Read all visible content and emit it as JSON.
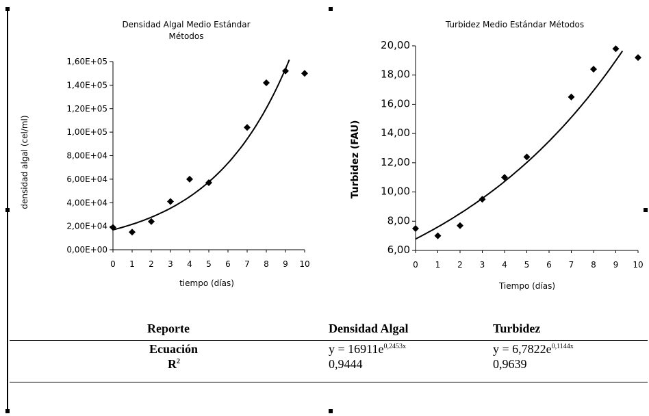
{
  "chart_data": [
    {
      "type": "scatter",
      "title": "Densidad Algal Medio Estándar Métodos",
      "title_lines": [
        "Densidad Algal Medio Estándar",
        "Métodos"
      ],
      "xlabel": "tiempo (días)",
      "ylabel": "densidad algal (cel/ml)",
      "xlim": [
        0,
        10
      ],
      "ylim": [
        0,
        160000
      ],
      "x_ticks": [
        0,
        1,
        2,
        3,
        4,
        5,
        6,
        7,
        8,
        9,
        10
      ],
      "y_ticks": [
        0,
        20000,
        40000,
        60000,
        80000,
        100000,
        120000,
        140000,
        160000
      ],
      "y_tick_labels": [
        "0,00E+00",
        "2,00E+04",
        "4,00E+04",
        "6,00E+04",
        "8,00E+04",
        "1,00E+05",
        "1,20E+05",
        "1,40E+05",
        "1,60E+05"
      ],
      "points": [
        {
          "x": 0,
          "y": 19000
        },
        {
          "x": 1,
          "y": 15000
        },
        {
          "x": 2,
          "y": 24000
        },
        {
          "x": 3,
          "y": 41000
        },
        {
          "x": 4,
          "y": 60000
        },
        {
          "x": 5,
          "y": 57000
        },
        {
          "x": 7,
          "y": 104000
        },
        {
          "x": 8,
          "y": 142000
        },
        {
          "x": 9,
          "y": 152000
        },
        {
          "x": 10,
          "y": 150000
        }
      ],
      "trendline": {
        "type": "exponential",
        "a": 16911,
        "b": 0.2453,
        "x_range": [
          0,
          9.2
        ]
      },
      "grid": false,
      "legend": "none"
    },
    {
      "type": "scatter",
      "title": "Turbidez Medio Estándar Métodos",
      "xlabel": "Tiempo (días)",
      "ylabel": "Turbidez (FAU)",
      "xlim": [
        0,
        10
      ],
      "ylim": [
        6,
        20
      ],
      "x_ticks": [
        0,
        1,
        2,
        3,
        4,
        5,
        6,
        7,
        8,
        9,
        10
      ],
      "y_ticks": [
        6,
        8,
        10,
        12,
        14,
        16,
        18,
        20
      ],
      "y_tick_labels": [
        "6,00",
        "8,00",
        "10,00",
        "12,00",
        "14,00",
        "16,00",
        "18,00",
        "20,00"
      ],
      "points": [
        {
          "x": 0,
          "y": 7.5
        },
        {
          "x": 1,
          "y": 7.0
        },
        {
          "x": 2,
          "y": 7.7
        },
        {
          "x": 3,
          "y": 9.5
        },
        {
          "x": 4,
          "y": 11.0
        },
        {
          "x": 5,
          "y": 12.4
        },
        {
          "x": 7,
          "y": 16.5
        },
        {
          "x": 8,
          "y": 18.4
        },
        {
          "x": 9,
          "y": 19.8
        },
        {
          "x": 10,
          "y": 19.2
        }
      ],
      "trendline": {
        "type": "exponential",
        "a": 6.7822,
        "b": 0.1144,
        "x_range": [
          0,
          9.3
        ]
      },
      "grid": false,
      "legend": "none"
    }
  ],
  "report": {
    "headers": {
      "reporte": "Reporte",
      "densidad": "Densidad Algal",
      "turbidez": "Turbidez"
    },
    "rows": [
      {
        "label": "Ecuación",
        "densidad_base": "y = 16911e",
        "densidad_exp": "0,2453x",
        "turbidez_base": "y = 6,7822e",
        "turbidez_exp": "0,1144x"
      },
      {
        "label": "R",
        "label_sup": "2",
        "densidad": "0,9444",
        "turbidez": "0,9639"
      }
    ]
  }
}
